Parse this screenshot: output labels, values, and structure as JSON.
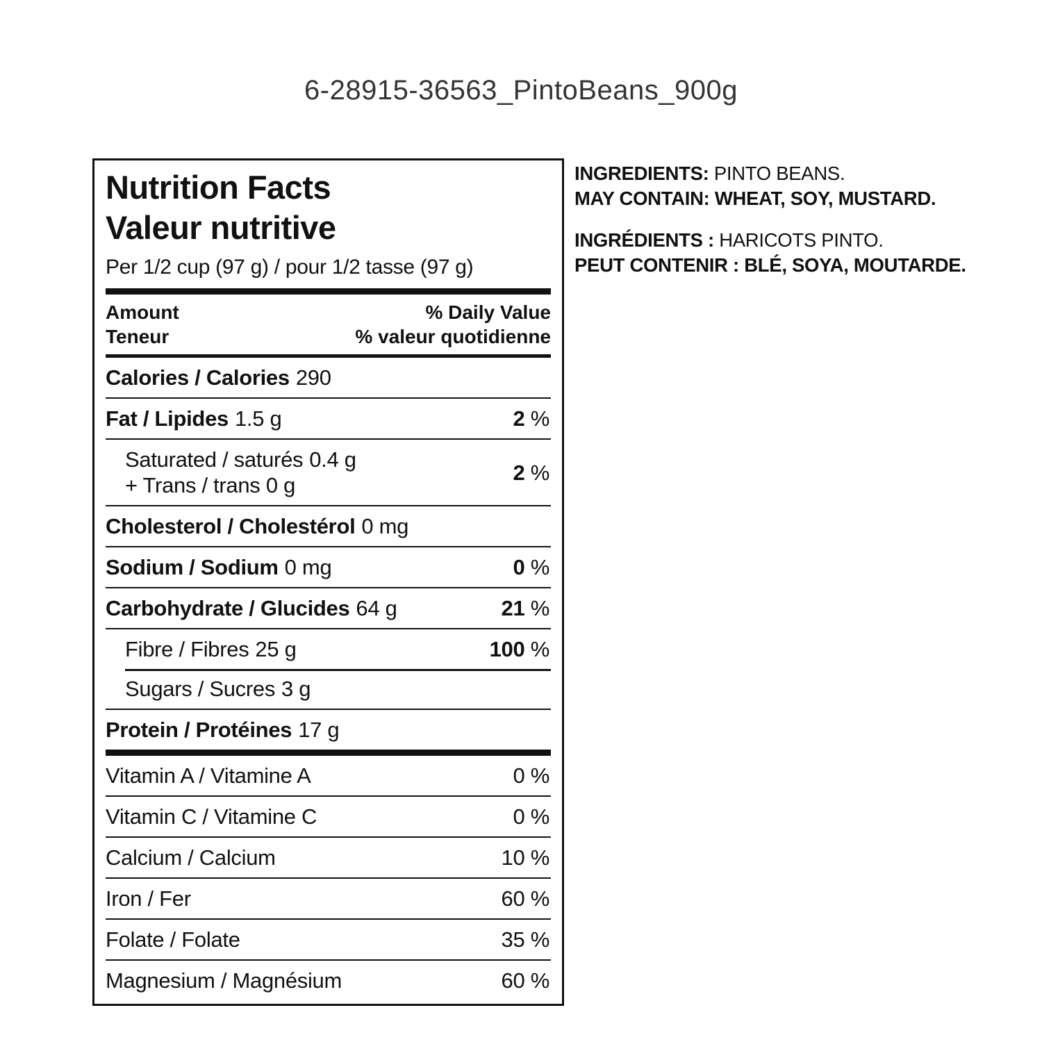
{
  "page_title": "6-28915-36563_PintoBeans_900g",
  "panel": {
    "title_en": "Nutrition Facts",
    "title_fr": "Valeur nutritive",
    "serving": "Per 1/2 cup (97 g) / pour 1/2 tasse (97 g)",
    "header": {
      "amount_en": "Amount",
      "amount_fr": "Teneur",
      "dv_en": "% Daily Value",
      "dv_fr": "% valeur quotidienne"
    },
    "rows": [
      {
        "name": "Calories / Calories",
        "value": "290",
        "pct": "",
        "pct_sign": ""
      },
      {
        "name": "Fat / Lipides",
        "value": "1.5 g",
        "pct": "2",
        "pct_sign": "%"
      },
      {
        "line1_name": "Saturated / saturés",
        "line1_value": "0.4 g",
        "line2": "+ Trans / trans 0 g",
        "pct": "2",
        "pct_sign": "%"
      },
      {
        "name": "Cholesterol / Cholestérol",
        "value": "0 mg",
        "pct": "",
        "pct_sign": ""
      },
      {
        "name": "Sodium / Sodium",
        "value": "0 mg",
        "pct": "0",
        "pct_sign": "%"
      },
      {
        "name": "Carbohydrate / Glucides",
        "value": "64 g",
        "pct": "21",
        "pct_sign": "%"
      },
      {
        "name": "Fibre / Fibres",
        "value": "25 g",
        "pct": "100",
        "pct_sign": "%"
      },
      {
        "name": "Sugars / Sucres",
        "value": "3 g",
        "pct": "",
        "pct_sign": ""
      },
      {
        "name": "Protein / Protéines",
        "value": "17 g",
        "pct": "",
        "pct_sign": ""
      },
      {
        "name": "Vitamin A / Vitamine A",
        "value": "",
        "pct": "0",
        "pct_sign": "%"
      },
      {
        "name": "Vitamin C / Vitamine C",
        "value": "",
        "pct": "0",
        "pct_sign": "%"
      },
      {
        "name": "Calcium / Calcium",
        "value": "",
        "pct": "10",
        "pct_sign": "%"
      },
      {
        "name": "Iron / Fer",
        "value": "",
        "pct": "60",
        "pct_sign": "%"
      },
      {
        "name": "Folate / Folate",
        "value": "",
        "pct": "35",
        "pct_sign": "%"
      },
      {
        "name": "Magnesium / Magnésium",
        "value": "",
        "pct": "60",
        "pct_sign": "%"
      }
    ]
  },
  "ingredients": {
    "en_label": "INGREDIENTS:",
    "en_text": "PINTO BEANS.",
    "en_contain_label": "MAY CONTAIN:",
    "en_contain_text": "WHEAT, SOY, MUSTARD.",
    "fr_label": "INGRÉDIENTS :",
    "fr_text": "HARICOTS PINTO.",
    "fr_contain_label": "PEUT CONTENIR :",
    "fr_contain_text": "BLÉ, SOYA, MOUTARDE."
  }
}
